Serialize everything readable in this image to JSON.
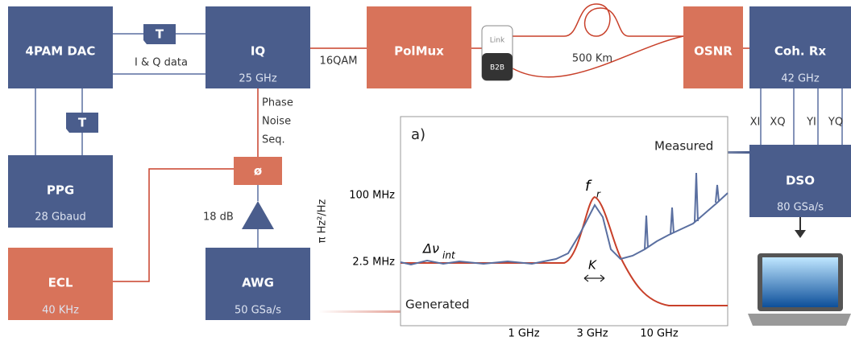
{
  "blocks": {
    "dac": {
      "label": "4PAM DAC"
    },
    "iq": {
      "label": "IQ",
      "sub": "25 GHz"
    },
    "polmux": {
      "label": "PolMux"
    },
    "osnr": {
      "label": "OSNR"
    },
    "cohrx": {
      "label": "Coh. Rx",
      "sub": "42 GHz"
    },
    "dso": {
      "label": "DSO",
      "sub": "80 GSa/s"
    },
    "ppg": {
      "label": "PPG",
      "sub": "28 Gbaud"
    },
    "ecl": {
      "label": "ECL",
      "sub": "40 KHz"
    },
    "awg": {
      "label": "AWG",
      "sub": "50 GSa/s"
    },
    "phase": {
      "label": "ø"
    },
    "t1": {
      "label": "T"
    },
    "t2": {
      "label": "T"
    }
  },
  "switch": {
    "top": "Link",
    "bottom": "B2B"
  },
  "labels": {
    "iq_data": "I & Q data",
    "modulation": "16QAM",
    "fiber": "500 Km",
    "phase_noise": [
      "Phase",
      "Noise",
      "Seq."
    ],
    "gain": "18 dB",
    "outputs": [
      "XI",
      "XQ",
      "YI",
      "YQ"
    ]
  },
  "plot": {
    "panel": "a)",
    "y_axis": "π Hz²/Hz",
    "yticks": [
      "100 MHz",
      "2.5 MHz"
    ],
    "xticks": [
      "1 GHz",
      "3 GHz",
      "10 GHz"
    ],
    "peak": "f",
    "peak_sub": "r",
    "linewidth": "Δν",
    "linewidth_sub": "int",
    "k": "K",
    "measured": "Measured",
    "generated": "Generated"
  }
}
